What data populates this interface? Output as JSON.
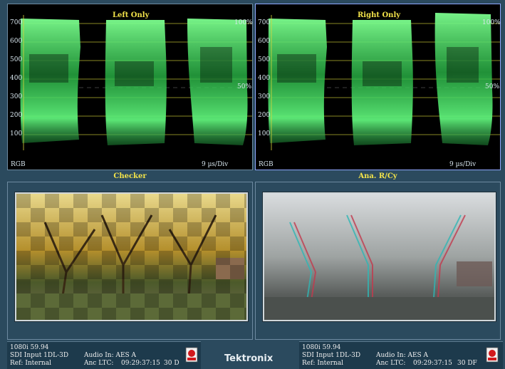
{
  "waveform_left": {
    "title": "Left Only",
    "ticks": [
      "700",
      "600",
      "500",
      "400",
      "300",
      "200",
      "100"
    ],
    "pct_top": "100%",
    "pct_mid": "50%",
    "mode": "RGB",
    "scale": "9 µs/Div"
  },
  "waveform_right": {
    "title": "Right Only",
    "ticks": [
      "700",
      "600",
      "500",
      "400",
      "300",
      "200",
      "100"
    ],
    "pct_top": "100%",
    "pct_mid": "50%",
    "mode": "RGB",
    "scale": "9 µs/Div"
  },
  "picture_left": {
    "title": "Checker"
  },
  "picture_right": {
    "title": "Ana. R/Cy"
  },
  "status_left": {
    "format": "1080i 59.94",
    "input": "SDI Input 1DL-3D",
    "ref": "Ref: Internal",
    "audio": "Audio In: AES A",
    "ltc_label": "Anc LTC:",
    "ltc_time": "09:29:37:15",
    "ltc_rate": "30 D"
  },
  "status_right": {
    "format": "1080i 59.94",
    "input": "SDI Input 1DL-3D",
    "ref": "Ref: Internal",
    "audio": "Audio In: AES A",
    "ltc_label": "Anc LTC:",
    "ltc_time": "09:29:37:15",
    "ltc_rate": "30 DF"
  },
  "brand": "Tektronix",
  "colors": {
    "trace": "#3ef05a",
    "graticule": "#e2df3e",
    "title": "#f2e34a",
    "background": "#2b4a5e"
  }
}
